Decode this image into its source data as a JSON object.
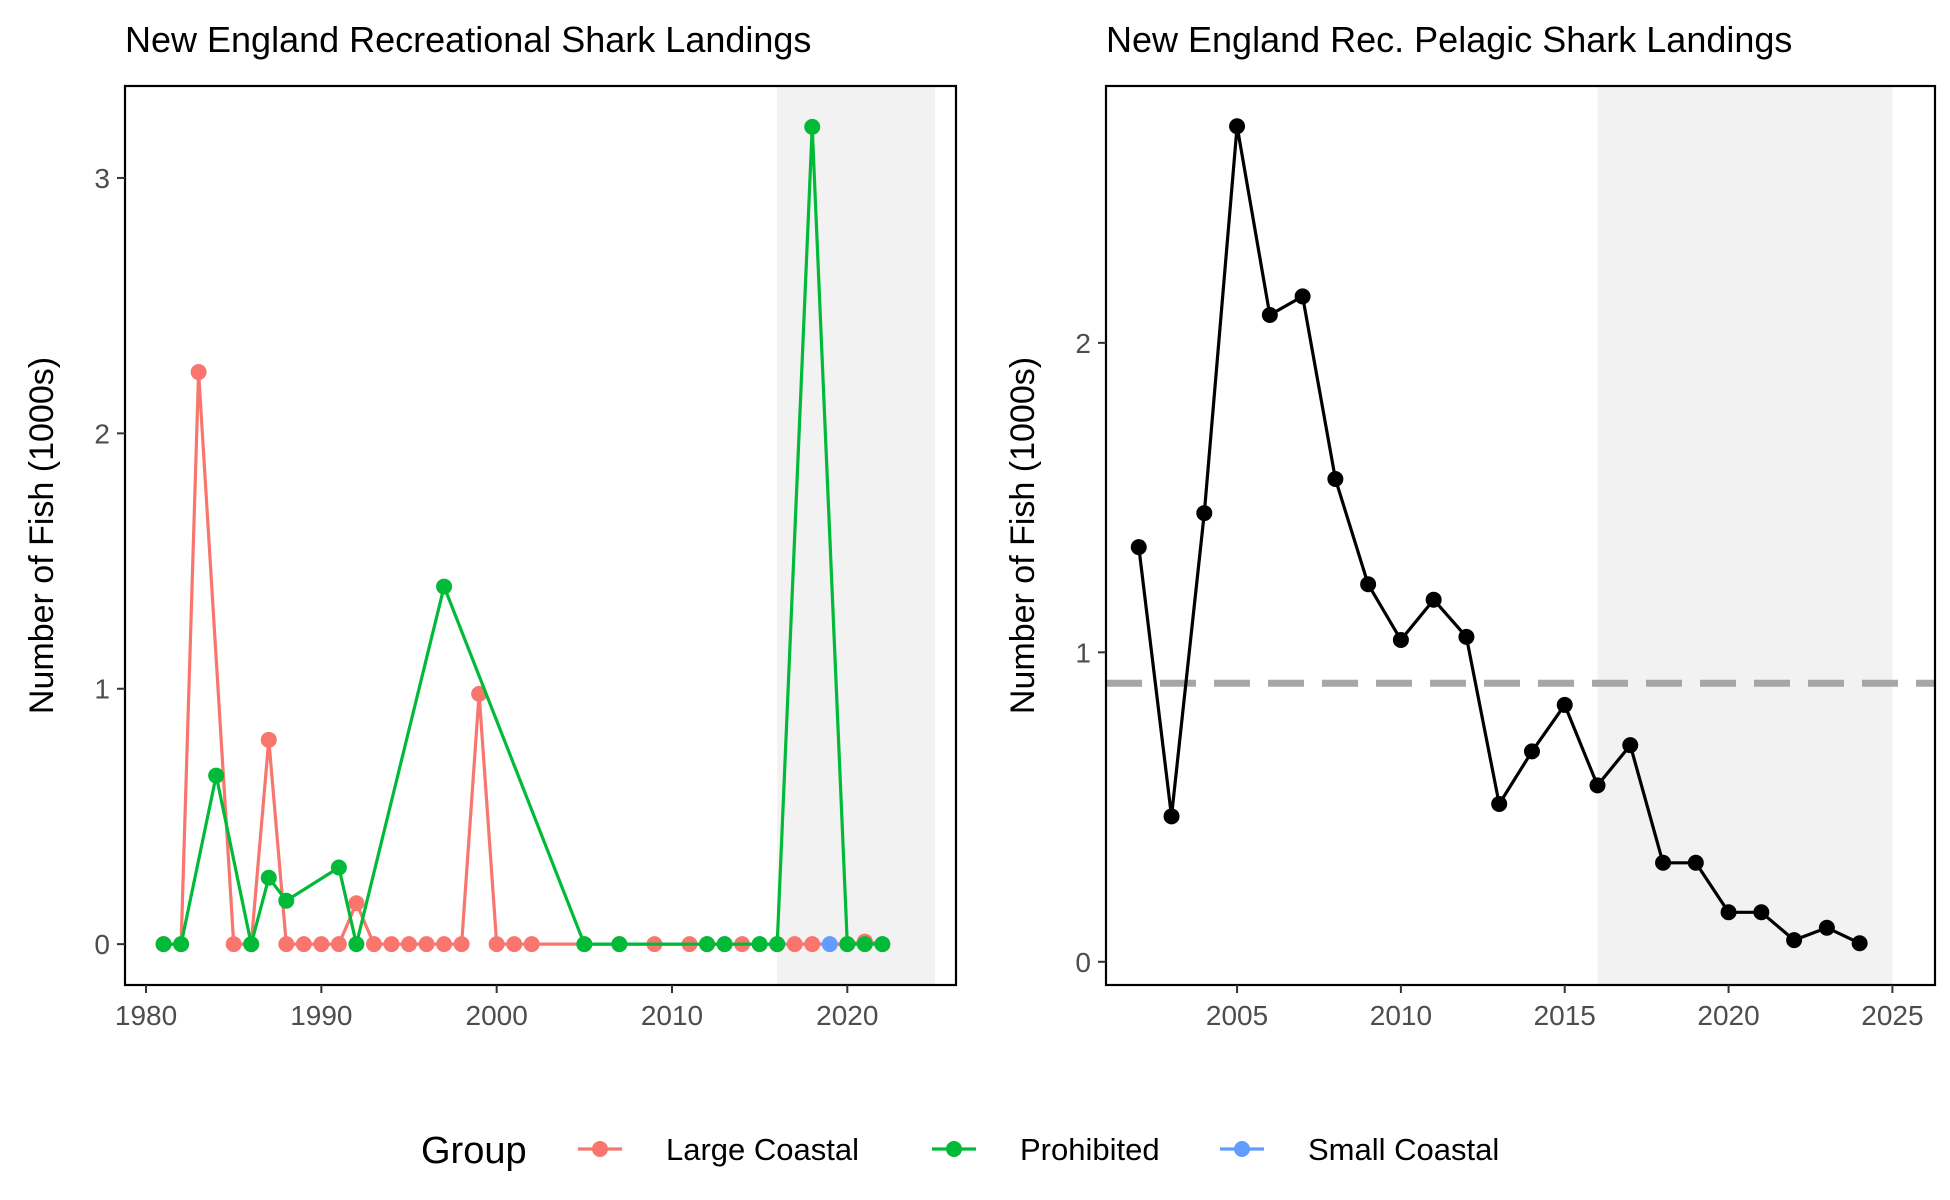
{
  "legend": {
    "title": "Group",
    "position": "bottom",
    "items": [
      {
        "label": "Large Coastal",
        "color": "#F8766D"
      },
      {
        "label": "Prohibited",
        "color": "#00BA38"
      },
      {
        "label": "Small Coastal",
        "color": "#619CFF"
      }
    ]
  },
  "chart_data": [
    {
      "type": "line",
      "title": "New England Recreational Shark Landings",
      "xlabel": "",
      "ylabel": "Number of Fish (1000s)",
      "xlim": [
        1978.8,
        2026.2
      ],
      "ylim": [
        -0.16,
        3.36
      ],
      "xticks": [
        1980,
        1990,
        2000,
        2010,
        2020
      ],
      "yticks": [
        0,
        1,
        2,
        3
      ],
      "shaded_region": [
        2016,
        2025
      ],
      "grid": false,
      "series": [
        {
          "name": "Large Coastal",
          "color": "#F8766D",
          "x": [
            1981,
            1982,
            1983,
            1985,
            1986,
            1987,
            1988,
            1989,
            1990,
            1991,
            1992,
            1993,
            1994,
            1995,
            1996,
            1997,
            1998,
            1999,
            2000,
            2001,
            2002,
            2005,
            2007,
            2009,
            2011,
            2012,
            2013,
            2014,
            2015,
            2016,
            2017,
            2018,
            2020,
            2021,
            2022
          ],
          "y": [
            0,
            0,
            2.24,
            0,
            0,
            0.8,
            0,
            0,
            0,
            0,
            0.16,
            0,
            0,
            0,
            0,
            0,
            0,
            0.98,
            0,
            0,
            0,
            0,
            0,
            0,
            0,
            0,
            0,
            0,
            0,
            0,
            0,
            0,
            0,
            0.01,
            0
          ]
        },
        {
          "name": "Prohibited",
          "color": "#00BA38",
          "x": [
            1981,
            1982,
            1984,
            1986,
            1987,
            1988,
            1991,
            1992,
            1997,
            2005,
            2007,
            2012,
            2013,
            2015,
            2016,
            2018,
            2020,
            2021,
            2022
          ],
          "y": [
            0,
            0,
            0.66,
            0,
            0.26,
            0.17,
            0.3,
            0,
            1.4,
            0,
            0,
            0,
            0,
            0,
            0,
            3.2,
            0,
            0,
            0
          ]
        },
        {
          "name": "Small Coastal",
          "color": "#619CFF",
          "x": [
            2019
          ],
          "y": [
            0
          ]
        }
      ]
    },
    {
      "type": "line",
      "title": "New England Rec. Pelagic Shark Landings",
      "xlabel": "",
      "ylabel": "Number of Fish (1000s)",
      "xlim": [
        2001,
        2026.3
      ],
      "ylim": [
        -0.075,
        2.83
      ],
      "xticks": [
        2005,
        2010,
        2015,
        2020,
        2025
      ],
      "yticks": [
        0,
        1,
        2
      ],
      "shaded_region": [
        2016,
        2025
      ],
      "reference_line": {
        "y": 0.9,
        "style": "dashed",
        "color": "#A6A6A6"
      },
      "grid": false,
      "series": [
        {
          "color": "#000000",
          "x": [
            2002,
            2003,
            2004,
            2005,
            2006,
            2007,
            2008,
            2009,
            2010,
            2011,
            2012,
            2013,
            2014,
            2015,
            2016,
            2017,
            2018,
            2019,
            2020,
            2021,
            2022,
            2023,
            2024
          ],
          "y": [
            1.34,
            0.47,
            1.45,
            2.7,
            2.09,
            2.15,
            1.56,
            1.22,
            1.04,
            1.17,
            1.05,
            0.51,
            0.68,
            0.83,
            0.57,
            0.7,
            0.32,
            0.32,
            0.16,
            0.16,
            0.07,
            0.11,
            0.06
          ]
        }
      ]
    }
  ]
}
